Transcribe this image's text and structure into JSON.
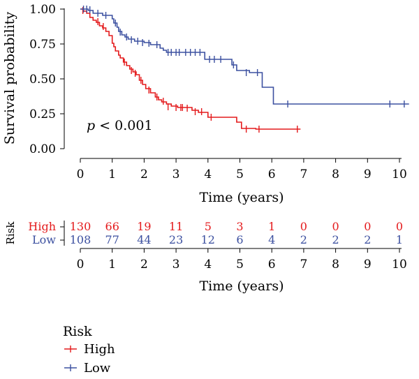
{
  "chart_data": {
    "type": "line",
    "subtype": "kaplan-meier",
    "ylabel": "Survival probability",
    "xlabel": "Time (years)",
    "xlim": [
      0,
      10.4
    ],
    "ylim": [
      0,
      1.0
    ],
    "x_ticks": [
      "0",
      "1",
      "2",
      "3",
      "4",
      "5",
      "6",
      "7",
      "8",
      "9",
      "10"
    ],
    "y_ticks": [
      "0.00",
      "0.25",
      "0.50",
      "0.75",
      "1.00"
    ],
    "pvalue_symbol": "p",
    "pvalue_text": " < 0.001",
    "grid": false,
    "series": [
      {
        "name": "High",
        "color": "#e41a1c",
        "steps": [
          [
            0,
            1.0
          ],
          [
            0.1,
            0.985
          ],
          [
            0.2,
            0.97
          ],
          [
            0.3,
            0.94
          ],
          [
            0.4,
            0.92
          ],
          [
            0.5,
            0.905
          ],
          [
            0.6,
            0.88
          ],
          [
            0.7,
            0.865
          ],
          [
            0.8,
            0.84
          ],
          [
            0.9,
            0.81
          ],
          [
            1.0,
            0.755
          ],
          [
            1.05,
            0.73
          ],
          [
            1.1,
            0.7
          ],
          [
            1.2,
            0.67
          ],
          [
            1.25,
            0.65
          ],
          [
            1.35,
            0.62
          ],
          [
            1.45,
            0.595
          ],
          [
            1.55,
            0.57
          ],
          [
            1.65,
            0.55
          ],
          [
            1.75,
            0.53
          ],
          [
            1.85,
            0.49
          ],
          [
            1.95,
            0.46
          ],
          [
            2.05,
            0.43
          ],
          [
            2.2,
            0.4
          ],
          [
            2.35,
            0.37
          ],
          [
            2.45,
            0.35
          ],
          [
            2.55,
            0.335
          ],
          [
            2.7,
            0.32
          ],
          [
            2.85,
            0.305
          ],
          [
            3.05,
            0.295
          ],
          [
            3.3,
            0.295
          ],
          [
            3.5,
            0.275
          ],
          [
            3.7,
            0.26
          ],
          [
            4.0,
            0.225
          ],
          [
            4.9,
            0.19
          ],
          [
            5.05,
            0.145
          ],
          [
            5.5,
            0.14
          ],
          [
            6.9,
            0.14
          ]
        ],
        "censor": [
          [
            0.08,
            0.99
          ],
          [
            0.55,
            0.91
          ],
          [
            0.72,
            0.875
          ],
          [
            1.38,
            0.62
          ],
          [
            1.6,
            0.56
          ],
          [
            1.72,
            0.54
          ],
          [
            1.9,
            0.49
          ],
          [
            2.15,
            0.42
          ],
          [
            2.4,
            0.37
          ],
          [
            2.6,
            0.34
          ],
          [
            2.75,
            0.3
          ],
          [
            3.0,
            0.295
          ],
          [
            3.15,
            0.295
          ],
          [
            3.2,
            0.295
          ],
          [
            3.35,
            0.29
          ],
          [
            3.6,
            0.265
          ],
          [
            3.8,
            0.265
          ],
          [
            4.1,
            0.225
          ],
          [
            5.2,
            0.14
          ],
          [
            5.6,
            0.14
          ],
          [
            6.8,
            0.14
          ]
        ]
      },
      {
        "name": "Low",
        "color": "#3c50a0",
        "steps": [
          [
            0,
            1.0
          ],
          [
            0.25,
            0.99
          ],
          [
            0.4,
            0.97
          ],
          [
            0.7,
            0.955
          ],
          [
            1.0,
            0.93
          ],
          [
            1.05,
            0.9
          ],
          [
            1.15,
            0.87
          ],
          [
            1.2,
            0.84
          ],
          [
            1.3,
            0.815
          ],
          [
            1.4,
            0.8
          ],
          [
            1.5,
            0.785
          ],
          [
            1.7,
            0.77
          ],
          [
            2.0,
            0.76
          ],
          [
            2.2,
            0.745
          ],
          [
            2.3,
            0.745
          ],
          [
            2.5,
            0.72
          ],
          [
            2.6,
            0.705
          ],
          [
            2.7,
            0.69
          ],
          [
            3.2,
            0.69
          ],
          [
            3.9,
            0.64
          ],
          [
            4.5,
            0.64
          ],
          [
            4.75,
            0.6
          ],
          [
            4.9,
            0.56
          ],
          [
            5.3,
            0.545
          ],
          [
            5.6,
            0.545
          ],
          [
            5.7,
            0.44
          ],
          [
            6.0,
            0.44
          ],
          [
            6.05,
            0.32
          ],
          [
            10.3,
            0.32
          ]
        ],
        "censor": [
          [
            0.1,
            1.0
          ],
          [
            0.2,
            1.0
          ],
          [
            0.3,
            0.995
          ],
          [
            0.55,
            0.97
          ],
          [
            0.8,
            0.955
          ],
          [
            1.1,
            0.9
          ],
          [
            1.25,
            0.835
          ],
          [
            1.45,
            0.8
          ],
          [
            1.6,
            0.78
          ],
          [
            1.8,
            0.77
          ],
          [
            1.95,
            0.76
          ],
          [
            2.15,
            0.755
          ],
          [
            2.4,
            0.745
          ],
          [
            2.75,
            0.69
          ],
          [
            2.85,
            0.69
          ],
          [
            3.0,
            0.69
          ],
          [
            3.1,
            0.69
          ],
          [
            3.3,
            0.69
          ],
          [
            3.45,
            0.69
          ],
          [
            3.6,
            0.69
          ],
          [
            3.75,
            0.69
          ],
          [
            4.05,
            0.64
          ],
          [
            4.2,
            0.64
          ],
          [
            4.4,
            0.64
          ],
          [
            4.8,
            0.6
          ],
          [
            5.2,
            0.545
          ],
          [
            5.55,
            0.545
          ],
          [
            6.5,
            0.32
          ],
          [
            9.7,
            0.32
          ],
          [
            10.15,
            0.32
          ]
        ]
      }
    ]
  },
  "risk_table": {
    "title": "Risk",
    "xlabel": "Time (years)",
    "times": [
      "0",
      "1",
      "2",
      "3",
      "4",
      "5",
      "6",
      "7",
      "8",
      "9",
      "10"
    ],
    "rows": [
      {
        "name": "High",
        "color": "#e41a1c",
        "counts": [
          "130",
          "66",
          "19",
          "11",
          "5",
          "3",
          "1",
          "0",
          "0",
          "0",
          "0"
        ]
      },
      {
        "name": "Low",
        "color": "#3c50a0",
        "counts": [
          "108",
          "77",
          "44",
          "23",
          "12",
          "6",
          "4",
          "2",
          "2",
          "2",
          "1"
        ]
      }
    ]
  },
  "legend": {
    "title": "Risk",
    "items": [
      {
        "label": "High",
        "color": "#e41a1c"
      },
      {
        "label": "Low",
        "color": "#3c50a0"
      }
    ]
  }
}
